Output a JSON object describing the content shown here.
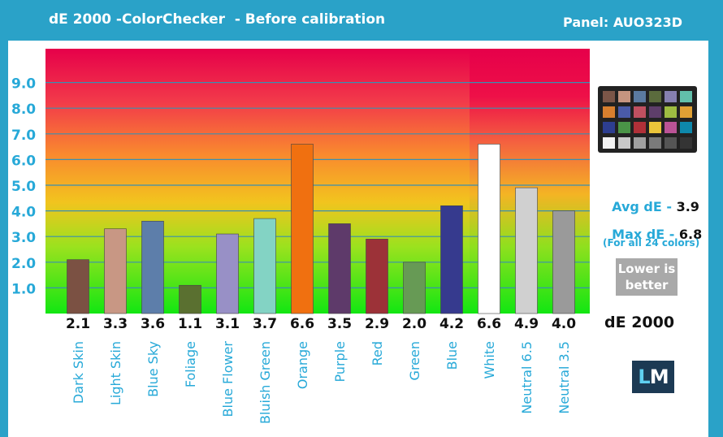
{
  "header": {
    "title": "dE 2000 -ColorChecker  - Before calibration",
    "panel": "Panel: AUO323D"
  },
  "stats": {
    "avg_label": "Avg dE -",
    "avg_value": "3.9",
    "max_label": "Max dE -",
    "max_value": "6.8",
    "note": "(For all 24 colors)",
    "lower_line1": "Lower is",
    "lower_line2": "better",
    "metric_label": "dE 2000"
  },
  "logo": {
    "l": "L",
    "m": "M"
  },
  "checker_colors": [
    "#7b5648",
    "#c69580",
    "#5b7aa0",
    "#5b6b3d",
    "#8680b0",
    "#62bfaa",
    "#d87f2e",
    "#4a5ba8",
    "#c05060",
    "#5e3e6a",
    "#9ebc42",
    "#e0a034",
    "#2d3e90",
    "#4a9447",
    "#b03038",
    "#eac43a",
    "#bb5396",
    "#0e88ab",
    "#f2f2f2",
    "#c8c8c8",
    "#a0a0a0",
    "#7a7a7a",
    "#555555",
    "#343434"
  ],
  "chart_data": {
    "type": "bar",
    "title": "dE 2000 -ColorChecker  - Before calibration",
    "xlabel": "",
    "ylabel": "",
    "ylim": [
      0,
      10
    ],
    "yticks": [
      {
        "value": 1,
        "label": "1.0"
      },
      {
        "value": 2,
        "label": "2.0"
      },
      {
        "value": 3,
        "label": "3.0"
      },
      {
        "value": 4,
        "label": "4.0"
      },
      {
        "value": 5,
        "label": "5.0"
      },
      {
        "value": 6,
        "label": "6.0"
      },
      {
        "value": 7,
        "label": "7.0"
      },
      {
        "value": 8,
        "label": "8.0"
      },
      {
        "value": 9,
        "label": "9.0"
      }
    ],
    "grid": true,
    "categories": [
      "Dark Skin",
      "Light Skin",
      "Blue Sky",
      "Foliage",
      "Blue Flower",
      "Bluish Green",
      "Orange",
      "Purple",
      "Red",
      "Green",
      "Blue",
      "White",
      "Neutral 6.5",
      "Neutral 3.5"
    ],
    "values": [
      2.1,
      3.3,
      3.6,
      1.1,
      3.1,
      3.7,
      6.6,
      3.5,
      2.9,
      2.0,
      4.2,
      6.6,
      4.9,
      4.0
    ],
    "value_labels": [
      "2.1",
      "3.3",
      "3.6",
      "1.1",
      "3.1",
      "3.7",
      "6.6",
      "3.5",
      "2.9",
      "2.0",
      "4.2",
      "6.6",
      "4.9",
      "4.0"
    ],
    "bar_colors": [
      "#7b5143",
      "#c89784",
      "#5d7eaa",
      "#5a7030",
      "#9890c6",
      "#83d3c4",
      "#f07010",
      "#5e3a6a",
      "#9c3238",
      "#679a55",
      "#363a8e",
      "#ffffff",
      "#d0d0d0",
      "#9a9a9a"
    ]
  }
}
